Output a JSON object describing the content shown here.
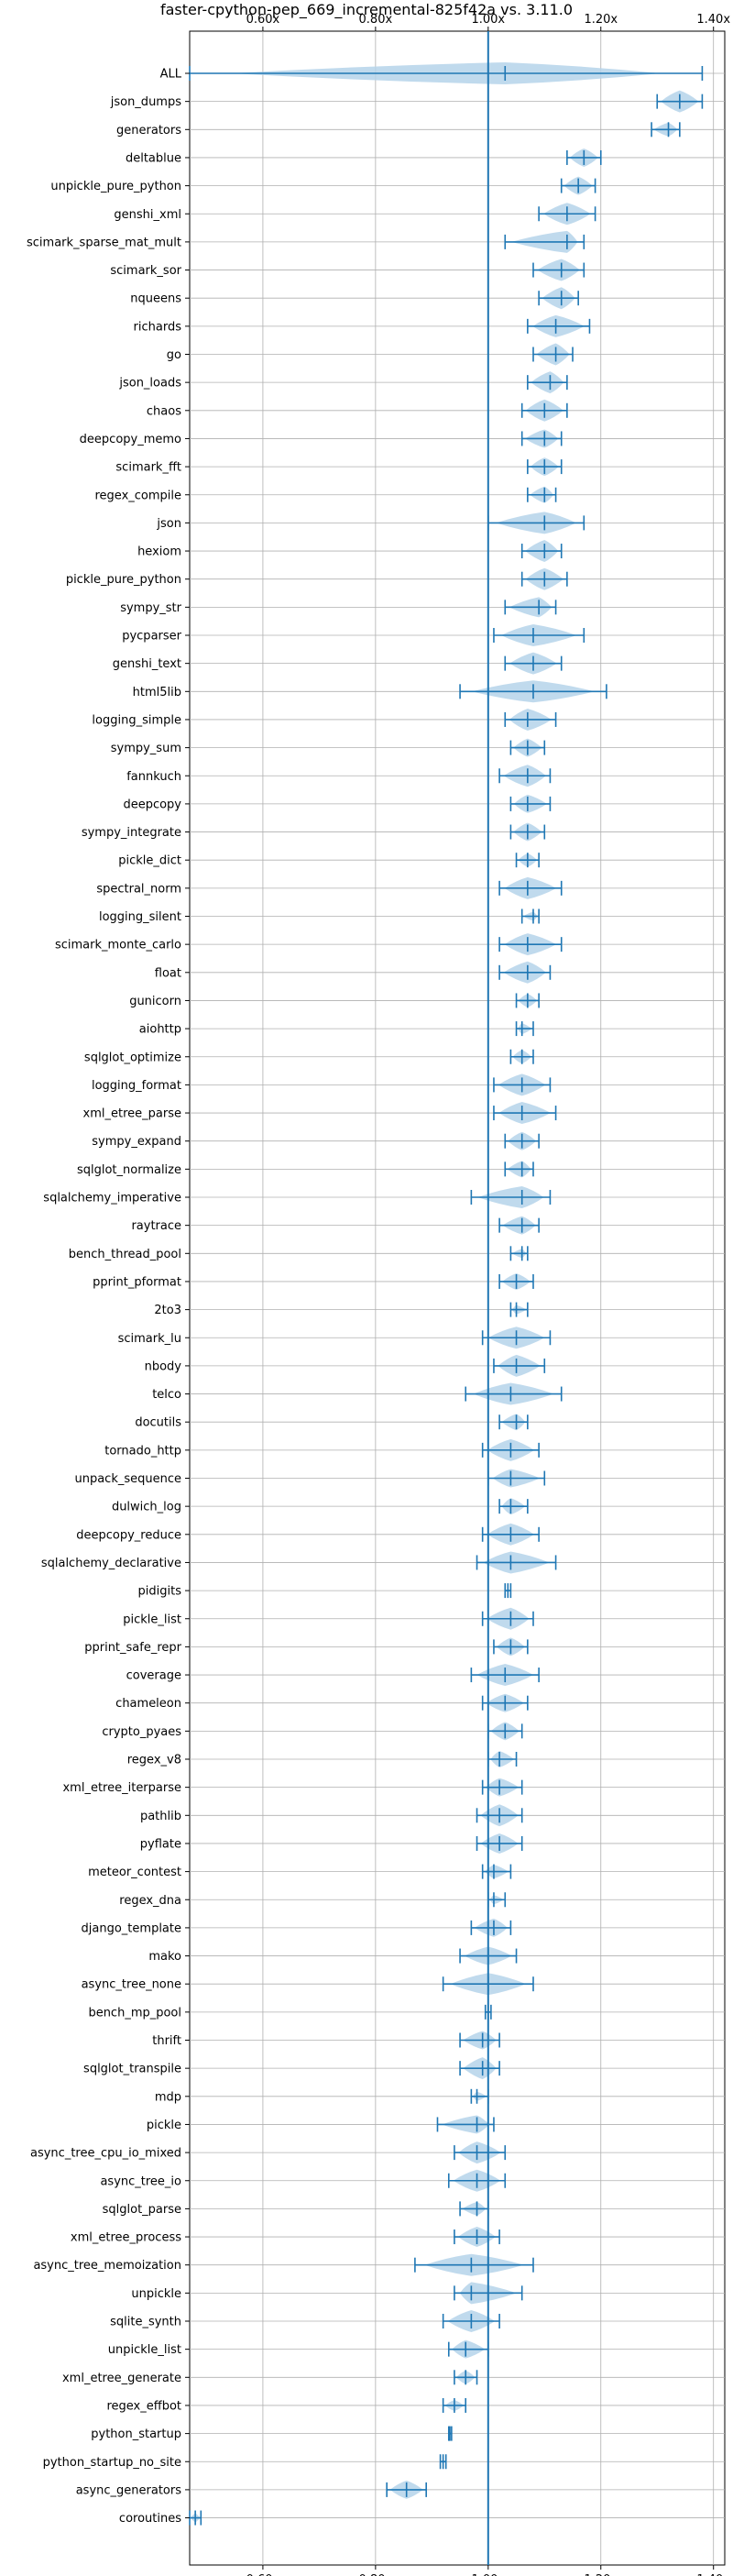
{
  "chart_data": {
    "type": "violin",
    "title": "faster-cpython-pep_669_incremental-825f42a vs. 3.11.0",
    "xlim": [
      0.47,
      1.42
    ],
    "x_ticks": [
      0.6,
      0.8,
      1.0,
      1.2,
      1.4
    ],
    "x_tick_labels": [
      "0.60x",
      "0.80x",
      "1.00x",
      "1.20x",
      "1.40x"
    ],
    "reference_line": 1.0,
    "grid": true,
    "colors": {
      "body": "#b5d3ea",
      "line": "#1f77b4"
    },
    "benchmarks": [
      {
        "name": "ALL",
        "min": 0.47,
        "max": 1.38,
        "median": 1.03,
        "width": 0.05
      },
      {
        "name": "json_dumps",
        "min": 1.3,
        "max": 1.38,
        "median": 1.34,
        "width": 0.025
      },
      {
        "name": "generators",
        "min": 1.29,
        "max": 1.34,
        "median": 1.32,
        "width": 0.015
      },
      {
        "name": "deltablue",
        "min": 1.14,
        "max": 1.2,
        "median": 1.17,
        "width": 0.02
      },
      {
        "name": "unpickle_pure_python",
        "min": 1.13,
        "max": 1.19,
        "median": 1.16,
        "width": 0.02
      },
      {
        "name": "genshi_xml",
        "min": 1.09,
        "max": 1.19,
        "median": 1.14,
        "width": 0.03
      },
      {
        "name": "scimark_sparse_mat_mult",
        "min": 1.03,
        "max": 1.17,
        "median": 1.14,
        "width": 0.025
      },
      {
        "name": "scimark_sor",
        "min": 1.08,
        "max": 1.17,
        "median": 1.13,
        "width": 0.025
      },
      {
        "name": "nqueens",
        "min": 1.09,
        "max": 1.16,
        "median": 1.13,
        "width": 0.025
      },
      {
        "name": "richards",
        "min": 1.07,
        "max": 1.18,
        "median": 1.12,
        "width": 0.03
      },
      {
        "name": "go",
        "min": 1.08,
        "max": 1.15,
        "median": 1.12,
        "width": 0.025
      },
      {
        "name": "json_loads",
        "min": 1.07,
        "max": 1.14,
        "median": 1.11,
        "width": 0.025
      },
      {
        "name": "chaos",
        "min": 1.06,
        "max": 1.14,
        "median": 1.1,
        "width": 0.025
      },
      {
        "name": "deepcopy_memo",
        "min": 1.06,
        "max": 1.13,
        "median": 1.1,
        "width": 0.02
      },
      {
        "name": "scimark_fft",
        "min": 1.07,
        "max": 1.13,
        "median": 1.1,
        "width": 0.02
      },
      {
        "name": "regex_compile",
        "min": 1.07,
        "max": 1.12,
        "median": 1.1,
        "width": 0.018
      },
      {
        "name": "json",
        "min": 1.0,
        "max": 1.17,
        "median": 1.1,
        "width": 0.04
      },
      {
        "name": "hexiom",
        "min": 1.06,
        "max": 1.13,
        "median": 1.1,
        "width": 0.025
      },
      {
        "name": "pickle_pure_python",
        "min": 1.06,
        "max": 1.14,
        "median": 1.1,
        "width": 0.025
      },
      {
        "name": "sympy_str",
        "min": 1.03,
        "max": 1.12,
        "median": 1.09,
        "width": 0.022
      },
      {
        "name": "pycparser",
        "min": 1.01,
        "max": 1.17,
        "median": 1.08,
        "width": 0.04
      },
      {
        "name": "genshi_text",
        "min": 1.03,
        "max": 1.13,
        "median": 1.08,
        "width": 0.03
      },
      {
        "name": "html5lib",
        "min": 0.95,
        "max": 1.21,
        "median": 1.08,
        "width": 0.05
      },
      {
        "name": "logging_simple",
        "min": 1.03,
        "max": 1.12,
        "median": 1.07,
        "width": 0.025
      },
      {
        "name": "sympy_sum",
        "min": 1.04,
        "max": 1.1,
        "median": 1.07,
        "width": 0.02
      },
      {
        "name": "fannkuch",
        "min": 1.02,
        "max": 1.11,
        "median": 1.07,
        "width": 0.025
      },
      {
        "name": "deepcopy",
        "min": 1.04,
        "max": 1.11,
        "median": 1.07,
        "width": 0.02
      },
      {
        "name": "sympy_integrate",
        "min": 1.04,
        "max": 1.1,
        "median": 1.07,
        "width": 0.02
      },
      {
        "name": "pickle_dict",
        "min": 1.05,
        "max": 1.09,
        "median": 1.07,
        "width": 0.015
      },
      {
        "name": "spectral_norm",
        "min": 1.02,
        "max": 1.13,
        "median": 1.07,
        "width": 0.025
      },
      {
        "name": "logging_silent",
        "min": 1.06,
        "max": 1.09,
        "median": 1.08,
        "width": 0.01
      },
      {
        "name": "scimark_monte_carlo",
        "min": 1.02,
        "max": 1.13,
        "median": 1.07,
        "width": 0.025
      },
      {
        "name": "float",
        "min": 1.02,
        "max": 1.11,
        "median": 1.07,
        "width": 0.025
      },
      {
        "name": "gunicorn",
        "min": 1.05,
        "max": 1.09,
        "median": 1.07,
        "width": 0.015
      },
      {
        "name": "aiohttp",
        "min": 1.05,
        "max": 1.08,
        "median": 1.06,
        "width": 0.012
      },
      {
        "name": "sqlglot_optimize",
        "min": 1.04,
        "max": 1.08,
        "median": 1.06,
        "width": 0.015
      },
      {
        "name": "logging_format",
        "min": 1.01,
        "max": 1.11,
        "median": 1.06,
        "width": 0.025
      },
      {
        "name": "xml_etree_parse",
        "min": 1.01,
        "max": 1.12,
        "median": 1.06,
        "width": 0.025
      },
      {
        "name": "sympy_expand",
        "min": 1.03,
        "max": 1.09,
        "median": 1.06,
        "width": 0.02
      },
      {
        "name": "sqlglot_normalize",
        "min": 1.03,
        "max": 1.08,
        "median": 1.06,
        "width": 0.018
      },
      {
        "name": "sqlalchemy_imperative",
        "min": 0.97,
        "max": 1.11,
        "median": 1.06,
        "width": 0.035
      },
      {
        "name": "raytrace",
        "min": 1.02,
        "max": 1.09,
        "median": 1.06,
        "width": 0.02
      },
      {
        "name": "bench_thread_pool",
        "min": 1.04,
        "max": 1.07,
        "median": 1.06,
        "width": 0.01
      },
      {
        "name": "pprint_pformat",
        "min": 1.02,
        "max": 1.08,
        "median": 1.05,
        "width": 0.018
      },
      {
        "name": "2to3",
        "min": 1.04,
        "max": 1.07,
        "median": 1.05,
        "width": 0.01
      },
      {
        "name": "scimark_lu",
        "min": 0.99,
        "max": 1.11,
        "median": 1.05,
        "width": 0.03
      },
      {
        "name": "nbody",
        "min": 1.01,
        "max": 1.1,
        "median": 1.05,
        "width": 0.025
      },
      {
        "name": "telco",
        "min": 0.96,
        "max": 1.13,
        "median": 1.04,
        "width": 0.035
      },
      {
        "name": "docutils",
        "min": 1.02,
        "max": 1.07,
        "median": 1.05,
        "width": 0.018
      },
      {
        "name": "tornado_http",
        "min": 0.99,
        "max": 1.09,
        "median": 1.04,
        "width": 0.025
      },
      {
        "name": "unpack_sequence",
        "min": 1.0,
        "max": 1.1,
        "median": 1.04,
        "width": 0.02
      },
      {
        "name": "dulwich_log",
        "min": 1.02,
        "max": 1.07,
        "median": 1.04,
        "width": 0.018
      },
      {
        "name": "deepcopy_reduce",
        "min": 0.99,
        "max": 1.09,
        "median": 1.04,
        "width": 0.03
      },
      {
        "name": "sqlalchemy_declarative",
        "min": 0.98,
        "max": 1.12,
        "median": 1.04,
        "width": 0.03
      },
      {
        "name": "pidigits",
        "min": 1.03,
        "max": 1.04,
        "median": 1.035,
        "width": 0.004
      },
      {
        "name": "pickle_list",
        "min": 0.99,
        "max": 1.08,
        "median": 1.04,
        "width": 0.025
      },
      {
        "name": "pprint_safe_repr",
        "min": 1.01,
        "max": 1.07,
        "median": 1.04,
        "width": 0.02
      },
      {
        "name": "coverage",
        "min": 0.97,
        "max": 1.09,
        "median": 1.03,
        "width": 0.035
      },
      {
        "name": "chameleon",
        "min": 0.99,
        "max": 1.07,
        "median": 1.03,
        "width": 0.02
      },
      {
        "name": "crypto_pyaes",
        "min": 1.0,
        "max": 1.06,
        "median": 1.03,
        "width": 0.02
      },
      {
        "name": "regex_v8",
        "min": 1.0,
        "max": 1.05,
        "median": 1.02,
        "width": 0.018
      },
      {
        "name": "xml_etree_iterparse",
        "min": 0.99,
        "max": 1.06,
        "median": 1.02,
        "width": 0.02
      },
      {
        "name": "pathlib",
        "min": 0.98,
        "max": 1.06,
        "median": 1.02,
        "width": 0.025
      },
      {
        "name": "pyflate",
        "min": 0.98,
        "max": 1.06,
        "median": 1.02,
        "width": 0.022
      },
      {
        "name": "meteor_contest",
        "min": 0.99,
        "max": 1.04,
        "median": 1.01,
        "width": 0.015
      },
      {
        "name": "regex_dna",
        "min": 1.0,
        "max": 1.03,
        "median": 1.01,
        "width": 0.01
      },
      {
        "name": "django_template",
        "min": 0.97,
        "max": 1.04,
        "median": 1.01,
        "width": 0.02
      },
      {
        "name": "mako",
        "min": 0.95,
        "max": 1.05,
        "median": 1.0,
        "width": 0.02
      },
      {
        "name": "async_tree_none",
        "min": 0.92,
        "max": 1.08,
        "median": 1.0,
        "width": 0.05
      },
      {
        "name": "bench_mp_pool",
        "min": 0.995,
        "max": 1.005,
        "median": 1.0,
        "width": 0.003
      },
      {
        "name": "thrift",
        "min": 0.95,
        "max": 1.02,
        "median": 0.99,
        "width": 0.02
      },
      {
        "name": "sqlglot_transpile",
        "min": 0.95,
        "max": 1.02,
        "median": 0.99,
        "width": 0.025
      },
      {
        "name": "mdp",
        "min": 0.97,
        "max": 1.0,
        "median": 0.98,
        "width": 0.01
      },
      {
        "name": "pickle",
        "min": 0.91,
        "max": 1.01,
        "median": 0.98,
        "width": 0.02
      },
      {
        "name": "async_tree_cpu_io_mixed",
        "min": 0.94,
        "max": 1.03,
        "median": 0.98,
        "width": 0.03
      },
      {
        "name": "async_tree_io",
        "min": 0.93,
        "max": 1.03,
        "median": 0.98,
        "width": 0.028
      },
      {
        "name": "sqlglot_parse",
        "min": 0.95,
        "max": 1.0,
        "median": 0.98,
        "width": 0.015
      },
      {
        "name": "xml_etree_process",
        "min": 0.94,
        "max": 1.02,
        "median": 0.98,
        "width": 0.022
      },
      {
        "name": "async_tree_memoization",
        "min": 0.87,
        "max": 1.08,
        "median": 0.97,
        "width": 0.06
      },
      {
        "name": "unpickle",
        "min": 0.94,
        "max": 1.06,
        "median": 0.97,
        "width": 0.025
      },
      {
        "name": "sqlite_synth",
        "min": 0.92,
        "max": 1.02,
        "median": 0.97,
        "width": 0.025
      },
      {
        "name": "unpickle_list",
        "min": 0.93,
        "max": 1.0,
        "median": 0.96,
        "width": 0.02
      },
      {
        "name": "xml_etree_generate",
        "min": 0.94,
        "max": 0.98,
        "median": 0.96,
        "width": 0.015
      },
      {
        "name": "regex_effbot",
        "min": 0.92,
        "max": 0.96,
        "median": 0.94,
        "width": 0.012
      },
      {
        "name": "python_startup",
        "min": 0.93,
        "max": 0.935,
        "median": 0.932,
        "width": 0.003
      },
      {
        "name": "python_startup_no_site",
        "min": 0.915,
        "max": 0.925,
        "median": 0.92,
        "width": 0.003
      },
      {
        "name": "async_generators",
        "min": 0.82,
        "max": 0.89,
        "median": 0.855,
        "width": 0.02
      },
      {
        "name": "coroutines",
        "min": 0.47,
        "max": 0.49,
        "median": 0.48,
        "width": 0.01
      }
    ]
  }
}
